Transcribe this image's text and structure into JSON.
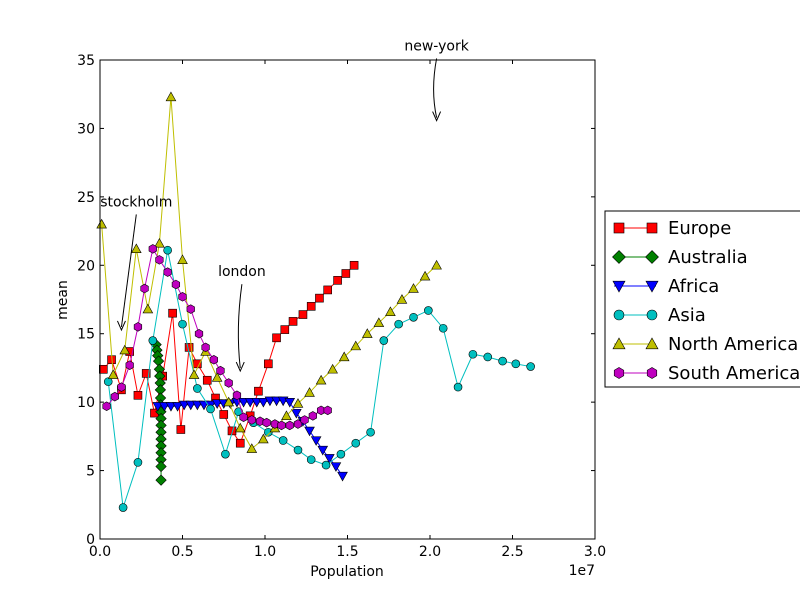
{
  "chart_data": {
    "type": "line",
    "title": "",
    "xlabel": "Population",
    "ylabel": "mean",
    "x_offset_label": "1e7",
    "xlim": [
      0,
      3.0
    ],
    "ylim": [
      0,
      35
    ],
    "x_ticks": [
      0,
      0.5,
      1.0,
      1.5,
      2.0,
      2.5,
      3.0
    ],
    "x_tick_labels": [
      "0.0",
      "0.5",
      "1.0",
      "1.5",
      "2.0",
      "2.5",
      "3.0"
    ],
    "y_ticks": [
      0,
      5,
      10,
      15,
      20,
      25,
      30,
      35
    ],
    "y_tick_labels": [
      "0",
      "5",
      "10",
      "15",
      "20",
      "25",
      "30",
      "35"
    ],
    "grid": false,
    "legend_position": "right",
    "series": [
      {
        "name": "Europe",
        "color": "#ff0000",
        "marker": "square",
        "x": [
          0.02,
          0.07,
          0.13,
          0.18,
          0.23,
          0.28,
          0.33,
          0.38,
          0.44,
          0.49,
          0.54,
          0.59,
          0.65,
          0.7,
          0.75,
          0.8,
          0.85,
          0.91,
          0.96,
          1.02,
          1.07,
          1.12,
          1.17,
          1.23,
          1.28,
          1.33,
          1.38,
          1.44,
          1.49,
          1.54
        ],
        "y": [
          12.4,
          13.1,
          10.9,
          13.7,
          10.5,
          12.1,
          9.2,
          11.9,
          16.5,
          8.0,
          14.0,
          12.8,
          11.6,
          10.3,
          9.1,
          7.9,
          7.0,
          9.0,
          10.8,
          12.8,
          14.7,
          15.3,
          15.9,
          16.4,
          17.0,
          17.6,
          18.2,
          18.9,
          19.4,
          20.0
        ]
      },
      {
        "name": "Australia",
        "color": "#008000",
        "marker": "diamond",
        "x": [
          0.34,
          0.345,
          0.35,
          0.355,
          0.36,
          0.362,
          0.365,
          0.366,
          0.367,
          0.368,
          0.369,
          0.37,
          0.37,
          0.37,
          0.37,
          0.37,
          0.37,
          0.37,
          0.37,
          0.37
        ],
        "y": [
          14.2,
          13.8,
          13.4,
          13.0,
          12.4,
          11.9,
          11.4,
          10.9,
          10.3,
          9.8,
          9.3,
          8.8,
          8.3,
          7.8,
          7.3,
          6.8,
          6.3,
          5.8,
          5.3,
          4.3
        ]
      },
      {
        "name": "Africa",
        "color": "#0000ff",
        "marker": "triangle-down",
        "x": [
          0.35,
          0.39,
          0.43,
          0.47,
          0.51,
          0.55,
          0.59,
          0.63,
          0.67,
          0.71,
          0.75,
          0.79,
          0.83,
          0.87,
          0.91,
          0.95,
          0.99,
          1.03,
          1.07,
          1.11,
          1.15,
          1.19,
          1.23,
          1.27,
          1.31,
          1.35,
          1.39,
          1.43,
          1.47
        ],
        "y": [
          9.7,
          9.7,
          9.7,
          9.7,
          9.8,
          9.8,
          9.8,
          9.8,
          9.8,
          9.9,
          9.9,
          9.9,
          10.0,
          10.0,
          10.0,
          10.0,
          10.0,
          10.1,
          10.1,
          10.1,
          10.0,
          9.2,
          8.6,
          7.9,
          7.2,
          6.5,
          5.9,
          5.3,
          4.6
        ]
      },
      {
        "name": "Asia",
        "color": "#00bfbf",
        "marker": "circle",
        "x": [
          0.05,
          0.14,
          0.23,
          0.32,
          0.41,
          0.5,
          0.59,
          0.67,
          0.76,
          0.84,
          0.93,
          1.02,
          1.11,
          1.2,
          1.28,
          1.37,
          1.46,
          1.55,
          1.64,
          1.72,
          1.81,
          1.9,
          1.99,
          2.08,
          2.17,
          2.26,
          2.35,
          2.44,
          2.52,
          2.61
        ],
        "y": [
          11.5,
          2.3,
          5.6,
          14.5,
          21.1,
          15.7,
          11.0,
          9.5,
          6.2,
          9.3,
          8.5,
          7.8,
          7.2,
          6.5,
          5.8,
          5.4,
          6.2,
          7.0,
          7.8,
          14.5,
          15.7,
          16.2,
          16.7,
          15.4,
          11.1,
          13.5,
          13.3,
          13.0,
          12.8,
          12.6
        ]
      },
      {
        "name": "North America",
        "color": "#bfbf00",
        "marker": "triangle-up",
        "x": [
          0.01,
          0.08,
          0.15,
          0.22,
          0.29,
          0.36,
          0.43,
          0.5,
          0.57,
          0.64,
          0.71,
          0.78,
          0.85,
          0.92,
          0.99,
          1.06,
          1.13,
          1.2,
          1.27,
          1.34,
          1.41,
          1.48,
          1.55,
          1.62,
          1.69,
          1.76,
          1.83,
          1.9,
          1.97,
          2.04
        ],
        "y": [
          23.0,
          12.0,
          13.8,
          21.2,
          16.8,
          21.6,
          32.3,
          20.4,
          12.0,
          13.7,
          11.8,
          10.0,
          8.1,
          6.6,
          7.3,
          8.1,
          9.0,
          9.9,
          10.7,
          11.6,
          12.4,
          13.3,
          14.1,
          15.0,
          15.8,
          16.6,
          17.5,
          18.3,
          19.2,
          20.0
        ]
      },
      {
        "name": "South America",
        "color": "#bf00bf",
        "marker": "hexagon",
        "x": [
          0.04,
          0.09,
          0.13,
          0.18,
          0.23,
          0.27,
          0.32,
          0.36,
          0.41,
          0.46,
          0.5,
          0.55,
          0.6,
          0.64,
          0.69,
          0.73,
          0.78,
          0.83,
          0.87,
          0.92,
          0.97,
          1.01,
          1.06,
          1.1,
          1.15,
          1.2,
          1.24,
          1.29,
          1.34,
          1.38
        ],
        "y": [
          9.7,
          10.4,
          11.1,
          12.7,
          15.5,
          18.3,
          21.2,
          20.4,
          19.5,
          18.6,
          17.7,
          16.8,
          15.0,
          14.0,
          13.1,
          12.3,
          11.4,
          10.5,
          8.9,
          8.7,
          8.6,
          8.5,
          8.4,
          8.3,
          8.3,
          8.4,
          8.7,
          9.0,
          9.4,
          9.4
        ]
      }
    ],
    "annotations": [
      {
        "text": "new-york",
        "arrow_to": [
          2.04,
          30.5
        ],
        "text_at": [
          2.04,
          35.7
        ]
      },
      {
        "text": "stockholm",
        "arrow_to": [
          0.13,
          15.2
        ],
        "text_at": [
          0.22,
          24.3
        ]
      },
      {
        "text": "london",
        "arrow_to": [
          0.85,
          12.2
        ],
        "text_at": [
          0.86,
          19.2
        ]
      }
    ]
  }
}
